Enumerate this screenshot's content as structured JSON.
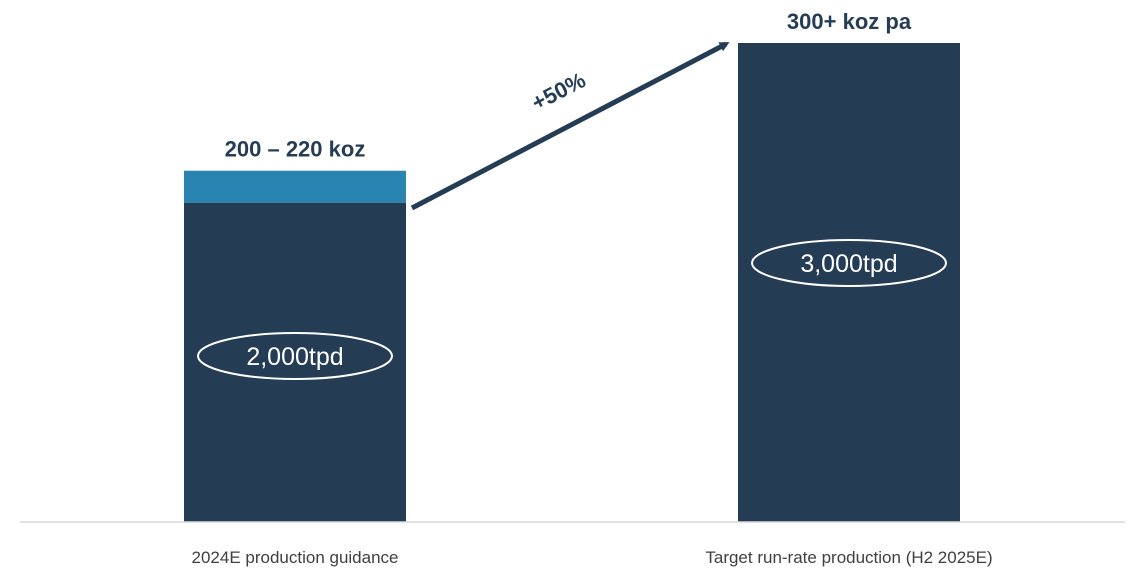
{
  "chart_data": {
    "type": "bar",
    "stacked": true,
    "categories": [
      "2024E production guidance",
      "Target run-rate production (H2 2025E)"
    ],
    "series": [
      {
        "values": [
          200,
          300
        ],
        "color": "#253c55"
      },
      {
        "values": [
          20,
          0
        ],
        "color": "#2a84b1"
      }
    ],
    "ylim": [
      0,
      300
    ],
    "grid": false,
    "legend": "none",
    "value_labels": [
      "200 – 220 koz",
      "300+ koz pa"
    ],
    "capacity_labels": [
      "2,000tpd",
      "3,000tpd"
    ],
    "growth_label": "+50%",
    "colors": {
      "bar": "#253c55",
      "range": "#2a84b1",
      "arrow": "#253c55",
      "axis": "#d9d9d9",
      "label_text": "#253c55",
      "category_text": "#404040",
      "capacity_text": "#ffffff"
    }
  }
}
